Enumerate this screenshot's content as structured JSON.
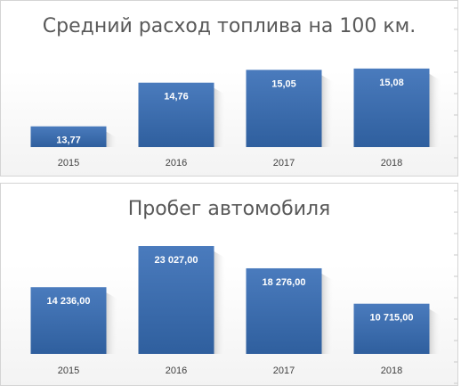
{
  "chart_data": [
    {
      "type": "bar",
      "title": "Средний расход топлива на 100 км.",
      "categories": [
        "2015",
        "2016",
        "2017",
        "2018"
      ],
      "values": [
        13.77,
        14.76,
        15.05,
        15.08
      ],
      "data_labels": [
        "13,77",
        "14,76",
        "15,05",
        "15,08"
      ],
      "ylim": [
        13.3,
        15.3
      ],
      "grid": false,
      "legend": "none",
      "colors": {
        "bar": "#4a7bbd",
        "bar_dark": "#2f5f9e"
      }
    },
    {
      "type": "bar",
      "title": "Пробег автомобиля",
      "categories": [
        "2015",
        "2016",
        "2017",
        "2018"
      ],
      "values": [
        14236.0,
        23027.0,
        18276.0,
        10715.0
      ],
      "data_labels": [
        "14 236,00",
        "23 027,00",
        "18 276,00",
        "10 715,00"
      ],
      "ylim": [
        0,
        23600
      ],
      "grid": false,
      "legend": "none",
      "colors": {
        "bar": "#4a7bbd",
        "bar_dark": "#2f5f9e"
      }
    }
  ]
}
